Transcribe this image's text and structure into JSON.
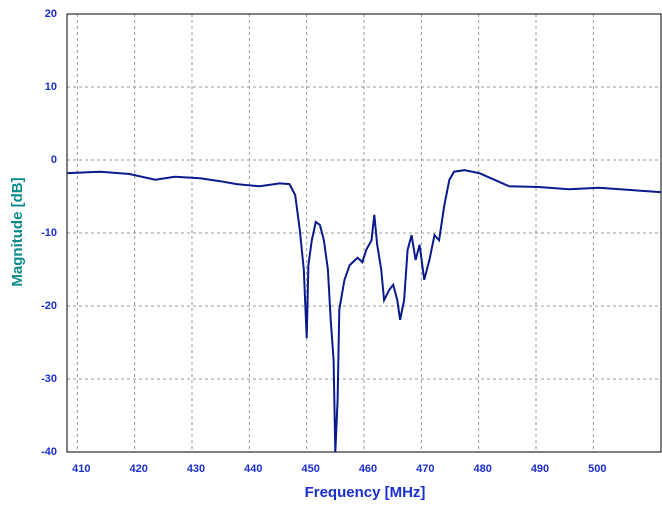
{
  "chart_data": {
    "type": "line",
    "xlabel": "Frequency [MHz]",
    "ylabel": "Magnitude [dB]",
    "xlim": [
      408.2,
      511.8
    ],
    "ylim": [
      -40,
      20
    ],
    "xticks": [
      410,
      420,
      430,
      440,
      450,
      460,
      470,
      480,
      490,
      500
    ],
    "yticks": [
      -40,
      -30,
      -20,
      -10,
      0,
      10,
      20
    ],
    "grid": true,
    "series": [
      {
        "color": "#0a1a8c",
        "x": [
          408.3,
          414,
          419,
          423.6,
          427,
          431.4,
          434.9,
          437.8,
          441.8,
          445.3,
          447,
          448,
          448.8,
          449.5,
          450,
          450.3,
          450.9,
          451.6,
          452.3,
          453,
          453.7,
          454.2,
          454.7,
          455.0,
          455.4,
          455.7,
          456.6,
          457.5,
          458.9,
          459.7,
          460.4,
          461.3,
          461.8,
          462.3,
          463,
          463.5,
          464.4,
          465.1,
          465.8,
          466.3,
          467,
          467.6,
          468.3,
          469,
          469.7,
          470.5,
          471.4,
          472.3,
          473.1,
          474,
          474.9,
          475.7,
          477.5,
          480.1,
          482.7,
          485.3,
          490.5,
          495.7,
          501,
          506.2,
          511.7
        ],
        "values": [
          -1.8,
          -1.6,
          -1.9,
          -2.7,
          -2.3,
          -2.5,
          -2.9,
          -3.3,
          -3.6,
          -3.2,
          -3.3,
          -4.8,
          -9.6,
          -15,
          -24.4,
          -14.4,
          -11,
          -8.5,
          -8.9,
          -11,
          -15,
          -21.9,
          -27.4,
          -40,
          -32.9,
          -20.5,
          -16.4,
          -14.4,
          -13.4,
          -14,
          -12.3,
          -11,
          -7.5,
          -11.6,
          -15,
          -19.2,
          -17.8,
          -17.1,
          -19.2,
          -21.9,
          -19.2,
          -12.3,
          -10.3,
          -13.7,
          -11.6,
          -16.4,
          -13.7,
          -10.3,
          -11,
          -6.2,
          -2.7,
          -1.6,
          -1.4,
          -1.8,
          -2.7,
          -3.6,
          -3.7,
          -4,
          -3.8,
          -4.1,
          -4.4
        ]
      }
    ]
  }
}
